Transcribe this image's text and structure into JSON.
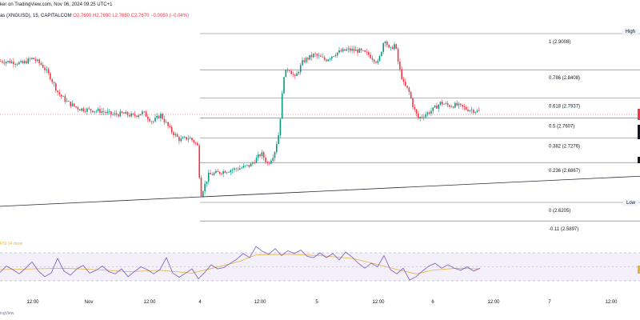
{
  "header": {
    "source_line": "ker on TradingView.com, Nov 06, 2024 09:25 UTC+1",
    "symbol": "as (XNGUSD), 15, CAPITALCOM",
    "ohlc": {
      "o": "O2.7690",
      "h": "H2.7690",
      "l": "L2.7650",
      "c": "C2.7670",
      "chg": "−0.0050 (−0.04%)"
    },
    "rsi_label": "RSI 14 close",
    "footer": "ingView"
  },
  "side_tags": {
    "high": "High",
    "low": "Low"
  },
  "colors": {
    "up": "#089981",
    "down": "#f23645",
    "rsi": "#7e57c2",
    "rsi_ma": "#e3b341",
    "grid": "#9598a1",
    "fib": "#6b6e78"
  },
  "chart_data": {
    "type": "candlestick",
    "ylim": [
      2.585,
      2.905
    ],
    "fib_levels": [
      {
        "ratio": "1",
        "value": 2.9008
      },
      {
        "ratio": "0.786",
        "value": 2.8408
      },
      {
        "ratio": "0.618",
        "value": 2.7937
      },
      {
        "ratio": "0.5",
        "value": 2.7607
      },
      {
        "ratio": "0.382",
        "value": 2.7276
      },
      {
        "ratio": "0.236",
        "value": 2.6867
      },
      {
        "ratio": "0",
        "value": 2.6205
      },
      {
        "ratio": "-0.11",
        "value": 2.5897
      }
    ],
    "x_ticks": [
      "12:00",
      "Nov",
      "12:00",
      "4",
      "12:00",
      "5",
      "12:00",
      "6",
      "12:00",
      "7",
      "12:00"
    ],
    "price_path": [
      [
        0,
        2.855
      ],
      [
        14,
        2.854
      ],
      [
        27,
        2.851
      ],
      [
        40,
        2.86
      ],
      [
        52,
        2.848
      ],
      [
        62,
        2.829
      ],
      [
        72,
        2.802
      ],
      [
        84,
        2.786
      ],
      [
        98,
        2.776
      ],
      [
        112,
        2.774
      ],
      [
        126,
        2.772
      ],
      [
        140,
        2.766
      ],
      [
        153,
        2.768
      ],
      [
        166,
        2.764
      ],
      [
        178,
        2.77
      ],
      [
        190,
        2.754
      ],
      [
        200,
        2.766
      ],
      [
        212,
        2.741
      ],
      [
        224,
        2.724
      ],
      [
        236,
        2.728
      ],
      [
        246,
        2.716
      ],
      [
        250,
        2.632
      ],
      [
        260,
        2.666
      ],
      [
        278,
        2.672
      ],
      [
        298,
        2.677
      ],
      [
        312,
        2.682
      ],
      [
        326,
        2.702
      ],
      [
        334,
        2.684
      ],
      [
        342,
        2.702
      ],
      [
        348,
        2.737
      ],
      [
        354,
        2.832
      ],
      [
        360,
        2.844
      ],
      [
        368,
        2.827
      ],
      [
        378,
        2.855
      ],
      [
        392,
        2.866
      ],
      [
        406,
        2.857
      ],
      [
        420,
        2.869
      ],
      [
        434,
        2.874
      ],
      [
        448,
        2.872
      ],
      [
        460,
        2.866
      ],
      [
        472,
        2.852
      ],
      [
        480,
        2.894
      ],
      [
        486,
        2.872
      ],
      [
        493,
        2.884
      ],
      [
        498,
        2.845
      ],
      [
        504,
        2.816
      ],
      [
        510,
        2.806
      ],
      [
        516,
        2.778
      ],
      [
        522,
        2.76
      ],
      [
        530,
        2.766
      ],
      [
        540,
        2.774
      ],
      [
        550,
        2.786
      ],
      [
        560,
        2.781
      ],
      [
        570,
        2.782
      ],
      [
        582,
        2.776
      ],
      [
        592,
        2.773
      ],
      [
        600,
        2.77
      ]
    ],
    "trendline": [
      [
        0,
        2.614
      ],
      [
        800,
        2.664
      ]
    ],
    "rsi_levels": [
      70,
      30
    ],
    "rsi_path": [
      [
        0,
        42
      ],
      [
        8,
        51
      ],
      [
        16,
        46
      ],
      [
        24,
        40
      ],
      [
        32,
        48
      ],
      [
        40,
        57
      ],
      [
        48,
        44
      ],
      [
        56,
        36
      ],
      [
        64,
        41
      ],
      [
        72,
        62
      ],
      [
        80,
        44
      ],
      [
        88,
        38
      ],
      [
        96,
        47
      ],
      [
        104,
        52
      ],
      [
        112,
        41
      ],
      [
        120,
        45
      ],
      [
        128,
        51
      ],
      [
        136,
        43
      ],
      [
        144,
        40
      ],
      [
        152,
        47
      ],
      [
        160,
        36
      ],
      [
        168,
        43
      ],
      [
        176,
        50
      ],
      [
        184,
        46
      ],
      [
        192,
        40
      ],
      [
        200,
        46
      ],
      [
        208,
        63
      ],
      [
        216,
        41
      ],
      [
        224,
        35
      ],
      [
        232,
        41
      ],
      [
        240,
        47
      ],
      [
        248,
        33
      ],
      [
        256,
        42
      ],
      [
        264,
        53
      ],
      [
        272,
        47
      ],
      [
        280,
        49
      ],
      [
        288,
        55
      ],
      [
        296,
        61
      ],
      [
        304,
        69
      ],
      [
        312,
        63
      ],
      [
        320,
        79
      ],
      [
        328,
        72
      ],
      [
        336,
        68
      ],
      [
        344,
        76
      ],
      [
        352,
        66
      ],
      [
        360,
        73
      ],
      [
        368,
        69
      ],
      [
        376,
        74
      ],
      [
        384,
        65
      ],
      [
        392,
        63
      ],
      [
        400,
        70
      ],
      [
        408,
        63
      ],
      [
        416,
        69
      ],
      [
        424,
        60
      ],
      [
        432,
        71
      ],
      [
        440,
        64
      ],
      [
        448,
        55
      ],
      [
        456,
        48
      ],
      [
        464,
        55
      ],
      [
        472,
        50
      ],
      [
        480,
        66
      ],
      [
        488,
        46
      ],
      [
        496,
        40
      ],
      [
        504,
        48
      ],
      [
        512,
        31
      ],
      [
        520,
        36
      ],
      [
        528,
        44
      ],
      [
        536,
        51
      ],
      [
        544,
        55
      ],
      [
        552,
        48
      ],
      [
        560,
        53
      ],
      [
        568,
        48
      ],
      [
        576,
        45
      ],
      [
        584,
        50
      ],
      [
        592,
        44
      ],
      [
        600,
        48
      ]
    ],
    "rsi_ma_path": [
      [
        0,
        46
      ],
      [
        40,
        47
      ],
      [
        80,
        48
      ],
      [
        120,
        46
      ],
      [
        160,
        43
      ],
      [
        200,
        45
      ],
      [
        240,
        41
      ],
      [
        280,
        52
      ],
      [
        300,
        58
      ],
      [
        320,
        67
      ],
      [
        360,
        68
      ],
      [
        400,
        66
      ],
      [
        440,
        62
      ],
      [
        470,
        54
      ],
      [
        500,
        45
      ],
      [
        520,
        40
      ],
      [
        540,
        45
      ],
      [
        570,
        48
      ],
      [
        600,
        47
      ]
    ]
  }
}
